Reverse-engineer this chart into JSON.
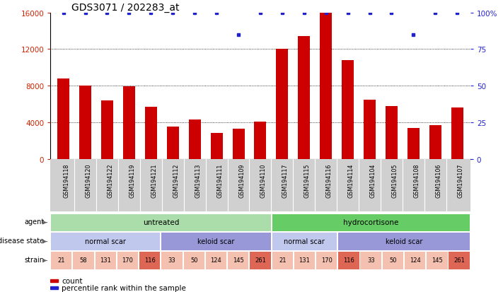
{
  "title": "GDS3071 / 202283_at",
  "samples": [
    "GSM194118",
    "GSM194120",
    "GSM194122",
    "GSM194119",
    "GSM194121",
    "GSM194112",
    "GSM194113",
    "GSM194111",
    "GSM194109",
    "GSM194110",
    "GSM194117",
    "GSM194115",
    "GSM194116",
    "GSM194114",
    "GSM194104",
    "GSM194105",
    "GSM194108",
    "GSM194106",
    "GSM194107"
  ],
  "counts": [
    8800,
    8000,
    6400,
    7900,
    5700,
    3500,
    4300,
    2800,
    3300,
    4100,
    12000,
    13400,
    16000,
    10800,
    6500,
    5800,
    3400,
    3700,
    5600
  ],
  "percentile": [
    100,
    100,
    100,
    100,
    100,
    100,
    100,
    100,
    85,
    100,
    100,
    100,
    100,
    100,
    100,
    100,
    85,
    100,
    100
  ],
  "bar_color": "#cc0000",
  "dot_color": "#2222cc",
  "ylim": [
    0,
    16000
  ],
  "yticks": [
    0,
    4000,
    8000,
    12000,
    16000
  ],
  "ytick_labels_left": [
    "0",
    "4000",
    "8000",
    "12000",
    "16000"
  ],
  "ytick_labels_right": [
    "0",
    "25",
    "50",
    "75",
    "100%"
  ],
  "agent_groups": [
    {
      "label": "untreated",
      "start": 0,
      "end": 10,
      "color": "#aaddaa"
    },
    {
      "label": "hydrocortisone",
      "start": 10,
      "end": 19,
      "color": "#66cc66"
    }
  ],
  "disease_groups": [
    {
      "label": "normal scar",
      "start": 0,
      "end": 5,
      "color": "#c0c8ee"
    },
    {
      "label": "keloid scar",
      "start": 5,
      "end": 10,
      "color": "#9898d8"
    },
    {
      "label": "normal scar",
      "start": 10,
      "end": 13,
      "color": "#c0c8ee"
    },
    {
      "label": "keloid scar",
      "start": 13,
      "end": 19,
      "color": "#9898d8"
    }
  ],
  "strain_values": [
    "21",
    "58",
    "131",
    "170",
    "116",
    "33",
    "50",
    "124",
    "145",
    "261",
    "21",
    "131",
    "170",
    "116",
    "33",
    "50",
    "124",
    "145",
    "261"
  ],
  "strain_highlight": [
    false,
    false,
    false,
    false,
    true,
    false,
    false,
    false,
    false,
    true,
    false,
    false,
    false,
    true,
    false,
    false,
    false,
    false,
    true
  ],
  "strain_color_normal": "#f4c0b0",
  "strain_color_highlight": "#dd6655",
  "background_color": "#ffffff",
  "label_color_left": "#cc2200",
  "label_color_right": "#2222cc",
  "figsize": [
    7.11,
    4.14
  ],
  "dpi": 100
}
